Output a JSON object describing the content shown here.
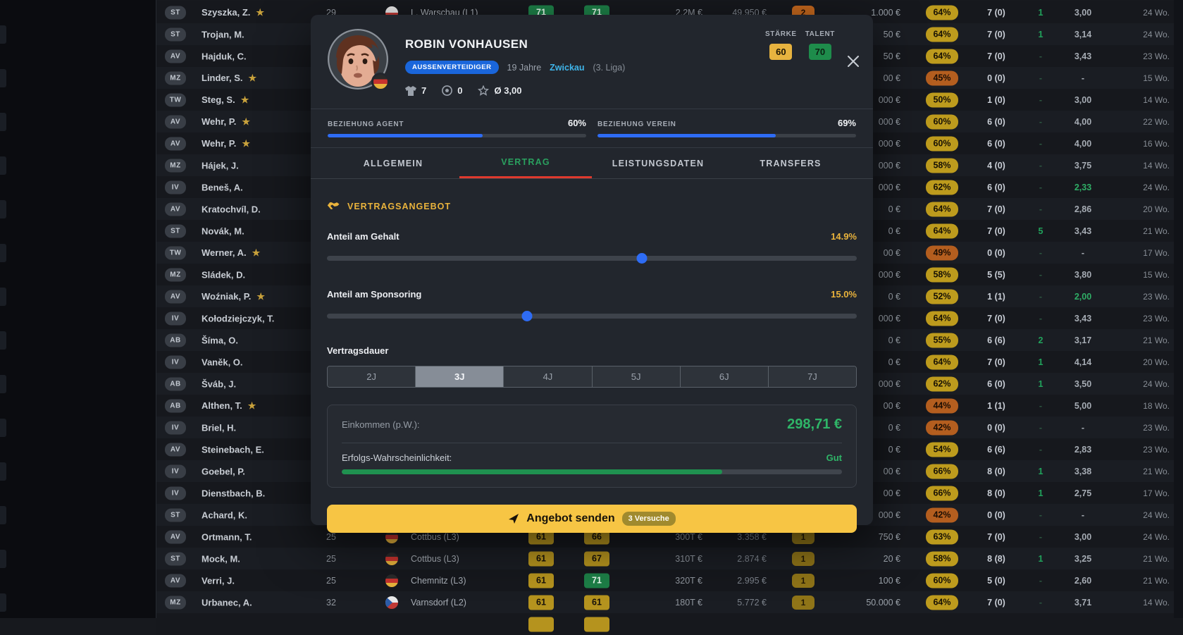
{
  "modal": {
    "player": {
      "name": "ROBIN VONHAUSEN",
      "position_badge": "AUSSENVERTEIDIGER",
      "age": "19 Jahre",
      "club": "Zwickau",
      "league": "(3. Liga)",
      "apps": "7",
      "goals": "0",
      "avg_rating": "Ø 3,00",
      "staerke_label": "STÄRKE",
      "staerke_value": "60",
      "talent_label": "TALENT",
      "talent_value": "70"
    },
    "relations": {
      "agent_label": "BEZIEHUNG AGENT",
      "agent_value": "60%",
      "agent_pct": 60,
      "verein_label": "BEZIEHUNG VEREIN",
      "verein_value": "69%",
      "verein_pct": 69
    },
    "tabs": [
      {
        "label": "ALLGEMEIN",
        "active": false
      },
      {
        "label": "VERTRAG",
        "active": true
      },
      {
        "label": "LEISTUNGSDATEN",
        "active": false
      },
      {
        "label": "TRANSFERS",
        "active": false
      }
    ],
    "contract": {
      "section_title": "VERTRAGSANGEBOT",
      "salary_label": "Anteil am Gehalt",
      "salary_value": "14.9%",
      "salary_thumb_pct": 59.4,
      "sponsor_label": "Anteil am Sponsoring",
      "sponsor_value": "15.0%",
      "sponsor_thumb_pct": 37.8,
      "duration_label": "Vertragsdauer",
      "durations": [
        "2J",
        "3J",
        "4J",
        "5J",
        "6J",
        "7J"
      ],
      "duration_selected": "3J",
      "income_label": "Einkommen (p.W.):",
      "income_value": "298,71 €",
      "probability_label": "Erfolgs-Wahrscheinlichkeit:",
      "probability_value": "Gut",
      "probability_pct": 76,
      "submit_label": "Angebot senden",
      "attempts_badge": "3 Versuche"
    },
    "colors": {
      "accent_gold": "#e9b33c",
      "accent_green": "#2fb568",
      "accent_blue": "#2e6cf5",
      "tab_underline": "#df3a2e",
      "button": "#f7c544"
    }
  },
  "table": {
    "rows": [
      {
        "pos": "ST",
        "name": "Szyszka, Z.",
        "star": true,
        "age": "29",
        "flag": "pl",
        "club": "L. Warschau (L1)",
        "r1": "71",
        "r1g": true,
        "r2": "71",
        "r2g": true,
        "market": "2.2M €",
        "salary": "49.950 €",
        "cb": "2",
        "cbo": true,
        "money": "1.000 €",
        "pct": "64%",
        "low": false,
        "games": "7 (0)",
        "extra": "1",
        "grade": "3,00",
        "gg": false,
        "weeks": "24 Wo."
      },
      {
        "pos": "ST",
        "name": "Trojan, M.",
        "star": false,
        "age": "",
        "flag": "",
        "club": "",
        "r1": "",
        "r1g": false,
        "r2": "",
        "r2g": false,
        "market": "",
        "salary": "",
        "cb": "",
        "cbo": false,
        "money": "50 €",
        "pct": "64%",
        "low": false,
        "games": "7 (0)",
        "extra": "1",
        "grade": "3,14",
        "gg": false,
        "weeks": "24 Wo."
      },
      {
        "pos": "AV",
        "name": "Hajduk, C.",
        "star": false,
        "age": "",
        "flag": "",
        "club": "",
        "r1": "",
        "r1g": false,
        "r2": "",
        "r2g": false,
        "market": "",
        "salary": "",
        "cb": "",
        "cbo": false,
        "money": "50 €",
        "pct": "64%",
        "low": false,
        "games": "7 (0)",
        "extra": "-",
        "grade": "3,43",
        "gg": false,
        "weeks": "23 Wo."
      },
      {
        "pos": "MZ",
        "name": "Linder, S.",
        "star": true,
        "age": "",
        "flag": "",
        "club": "",
        "r1": "",
        "r1g": false,
        "r2": "",
        "r2g": false,
        "market": "",
        "salary": "",
        "cb": "",
        "cbo": false,
        "money": "00 €",
        "pct": "45%",
        "low": true,
        "games": "0 (0)",
        "extra": "-",
        "grade": "-",
        "gg": false,
        "weeks": "15 Wo."
      },
      {
        "pos": "TW",
        "name": "Steg, S.",
        "star": true,
        "age": "",
        "flag": "",
        "club": "",
        "r1": "",
        "r1g": false,
        "r2": "",
        "r2g": false,
        "market": "",
        "salary": "",
        "cb": "",
        "cbo": false,
        "money": "000 €",
        "pct": "50%",
        "low": false,
        "games": "1 (0)",
        "extra": "-",
        "grade": "3,00",
        "gg": false,
        "weeks": "14 Wo."
      },
      {
        "pos": "AV",
        "name": "Wehr, P.",
        "star": true,
        "age": "",
        "flag": "",
        "club": "",
        "r1": "",
        "r1g": false,
        "r2": "",
        "r2g": false,
        "market": "",
        "salary": "",
        "cb": "",
        "cbo": false,
        "money": "000 €",
        "pct": "60%",
        "low": false,
        "games": "6 (0)",
        "extra": "-",
        "grade": "4,00",
        "gg": false,
        "weeks": "22 Wo."
      },
      {
        "pos": "AV",
        "name": "Wehr, P.",
        "star": true,
        "age": "",
        "flag": "",
        "club": "",
        "r1": "",
        "r1g": false,
        "r2": "",
        "r2g": false,
        "market": "",
        "salary": "",
        "cb": "",
        "cbo": false,
        "money": "000 €",
        "pct": "60%",
        "low": false,
        "games": "6 (0)",
        "extra": "-",
        "grade": "4,00",
        "gg": false,
        "weeks": "16 Wo."
      },
      {
        "pos": "MZ",
        "name": "Hájek, J.",
        "star": false,
        "age": "",
        "flag": "",
        "club": "",
        "r1": "",
        "r1g": false,
        "r2": "",
        "r2g": false,
        "market": "",
        "salary": "",
        "cb": "",
        "cbo": false,
        "money": "000 €",
        "pct": "58%",
        "low": false,
        "games": "4 (0)",
        "extra": "-",
        "grade": "3,75",
        "gg": false,
        "weeks": "14 Wo."
      },
      {
        "pos": "IV",
        "name": "Beneš, A.",
        "star": false,
        "age": "",
        "flag": "",
        "club": "",
        "r1": "",
        "r1g": false,
        "r2": "",
        "r2g": false,
        "market": "",
        "salary": "",
        "cb": "",
        "cbo": false,
        "money": "000 €",
        "pct": "62%",
        "low": false,
        "games": "6 (0)",
        "extra": "-",
        "grade": "2,33",
        "gg": true,
        "weeks": "24 Wo."
      },
      {
        "pos": "AV",
        "name": "Kratochvíl, D.",
        "star": false,
        "age": "",
        "flag": "",
        "club": "",
        "r1": "",
        "r1g": false,
        "r2": "",
        "r2g": false,
        "market": "",
        "salary": "",
        "cb": "",
        "cbo": false,
        "money": "0 €",
        "pct": "64%",
        "low": false,
        "games": "7 (0)",
        "extra": "-",
        "grade": "2,86",
        "gg": false,
        "weeks": "20 Wo."
      },
      {
        "pos": "ST",
        "name": "Novák, M.",
        "star": false,
        "age": "",
        "flag": "",
        "club": "",
        "r1": "",
        "r1g": false,
        "r2": "",
        "r2g": false,
        "market": "",
        "salary": "",
        "cb": "",
        "cbo": false,
        "money": "0 €",
        "pct": "64%",
        "low": false,
        "games": "7 (0)",
        "extra": "5",
        "grade": "3,43",
        "gg": false,
        "weeks": "21 Wo."
      },
      {
        "pos": "TW",
        "name": "Werner, A.",
        "star": true,
        "age": "",
        "flag": "",
        "club": "",
        "r1": "",
        "r1g": false,
        "r2": "",
        "r2g": false,
        "market": "",
        "salary": "",
        "cb": "",
        "cbo": false,
        "money": "00 €",
        "pct": "49%",
        "low": true,
        "games": "0 (0)",
        "extra": "-",
        "grade": "-",
        "gg": false,
        "weeks": "17 Wo."
      },
      {
        "pos": "MZ",
        "name": "Sládek, D.",
        "star": false,
        "age": "",
        "flag": "",
        "club": "",
        "r1": "",
        "r1g": false,
        "r2": "",
        "r2g": false,
        "market": "",
        "salary": "",
        "cb": "",
        "cbo": false,
        "money": "000 €",
        "pct": "58%",
        "low": false,
        "games": "5 (5)",
        "extra": "-",
        "grade": "3,80",
        "gg": false,
        "weeks": "15 Wo."
      },
      {
        "pos": "AV",
        "name": "Woźniak, P.",
        "star": true,
        "age": "",
        "flag": "",
        "club": "",
        "r1": "",
        "r1g": false,
        "r2": "",
        "r2g": false,
        "market": "",
        "salary": "",
        "cb": "",
        "cbo": false,
        "money": "0 €",
        "pct": "52%",
        "low": false,
        "games": "1 (1)",
        "extra": "-",
        "grade": "2,00",
        "gg": true,
        "weeks": "23 Wo."
      },
      {
        "pos": "IV",
        "name": "Kołodziejczyk, T.",
        "star": false,
        "age": "",
        "flag": "",
        "club": "",
        "r1": "",
        "r1g": false,
        "r2": "",
        "r2g": false,
        "market": "",
        "salary": "",
        "cb": "",
        "cbo": false,
        "money": "000 €",
        "pct": "64%",
        "low": false,
        "games": "7 (0)",
        "extra": "-",
        "grade": "3,43",
        "gg": false,
        "weeks": "23 Wo."
      },
      {
        "pos": "AB",
        "name": "Šíma, O.",
        "star": false,
        "age": "",
        "flag": "",
        "club": "",
        "r1": "",
        "r1g": false,
        "r2": "",
        "r2g": false,
        "market": "",
        "salary": "",
        "cb": "",
        "cbo": false,
        "money": "0 €",
        "pct": "55%",
        "low": false,
        "games": "6 (6)",
        "extra": "2",
        "grade": "3,17",
        "gg": false,
        "weeks": "21 Wo."
      },
      {
        "pos": "IV",
        "name": "Vaněk, O.",
        "star": false,
        "age": "",
        "flag": "",
        "club": "",
        "r1": "",
        "r1g": false,
        "r2": "",
        "r2g": false,
        "market": "",
        "salary": "",
        "cb": "",
        "cbo": false,
        "money": "0 €",
        "pct": "64%",
        "low": false,
        "games": "7 (0)",
        "extra": "1",
        "grade": "4,14",
        "gg": false,
        "weeks": "20 Wo."
      },
      {
        "pos": "AB",
        "name": "Šváb, J.",
        "star": false,
        "age": "",
        "flag": "",
        "club": "",
        "r1": "",
        "r1g": false,
        "r2": "",
        "r2g": false,
        "market": "",
        "salary": "",
        "cb": "",
        "cbo": false,
        "money": "000 €",
        "pct": "62%",
        "low": false,
        "games": "6 (0)",
        "extra": "1",
        "grade": "3,50",
        "gg": false,
        "weeks": "24 Wo."
      },
      {
        "pos": "AB",
        "name": "Althen, T.",
        "star": true,
        "age": "",
        "flag": "",
        "club": "",
        "r1": "",
        "r1g": false,
        "r2": "",
        "r2g": false,
        "market": "",
        "salary": "",
        "cb": "",
        "cbo": false,
        "money": "00 €",
        "pct": "44%",
        "low": true,
        "games": "1 (1)",
        "extra": "-",
        "grade": "5,00",
        "gg": false,
        "weeks": "18 Wo."
      },
      {
        "pos": "IV",
        "name": "Briel, H.",
        "star": false,
        "age": "",
        "flag": "",
        "club": "",
        "r1": "",
        "r1g": false,
        "r2": "",
        "r2g": false,
        "market": "",
        "salary": "",
        "cb": "",
        "cbo": false,
        "money": "0 €",
        "pct": "42%",
        "low": true,
        "games": "0 (0)",
        "extra": "-",
        "grade": "-",
        "gg": false,
        "weeks": "23 Wo."
      },
      {
        "pos": "AV",
        "name": "Steinebach, E.",
        "star": false,
        "age": "",
        "flag": "",
        "club": "",
        "r1": "",
        "r1g": false,
        "r2": "",
        "r2g": false,
        "market": "",
        "salary": "",
        "cb": "",
        "cbo": false,
        "money": "0 €",
        "pct": "54%",
        "low": false,
        "games": "6 (6)",
        "extra": "-",
        "grade": "2,83",
        "gg": false,
        "weeks": "23 Wo."
      },
      {
        "pos": "IV",
        "name": "Goebel, P.",
        "star": false,
        "age": "",
        "flag": "",
        "club": "",
        "r1": "",
        "r1g": false,
        "r2": "",
        "r2g": false,
        "market": "",
        "salary": "",
        "cb": "",
        "cbo": false,
        "money": "00 €",
        "pct": "66%",
        "low": false,
        "games": "8 (0)",
        "extra": "1",
        "grade": "3,38",
        "gg": false,
        "weeks": "21 Wo."
      },
      {
        "pos": "IV",
        "name": "Dienstbach, B.",
        "star": false,
        "age": "",
        "flag": "",
        "club": "",
        "r1": "",
        "r1g": false,
        "r2": "",
        "r2g": false,
        "market": "",
        "salary": "",
        "cb": "",
        "cbo": false,
        "money": "00 €",
        "pct": "66%",
        "low": false,
        "games": "8 (0)",
        "extra": "1",
        "grade": "2,75",
        "gg": false,
        "weeks": "17 Wo."
      },
      {
        "pos": "ST",
        "name": "Achard, K.",
        "star": false,
        "age": "",
        "flag": "",
        "club": "",
        "r1": "",
        "r1g": false,
        "r2": "",
        "r2g": false,
        "market": "",
        "salary": "",
        "cb": "",
        "cbo": false,
        "money": "000 €",
        "pct": "42%",
        "low": true,
        "games": "0 (0)",
        "extra": "-",
        "grade": "-",
        "gg": false,
        "weeks": "24 Wo."
      },
      {
        "pos": "AV",
        "name": "Ortmann, T.",
        "star": false,
        "age": "25",
        "flag": "de",
        "club": "Cottbus (L3)",
        "r1": "61",
        "r1g": false,
        "r2": "66",
        "r2g": false,
        "market": "300T €",
        "salary": "3.358 €",
        "cb": "1",
        "cbo": false,
        "money": "750 €",
        "pct": "63%",
        "low": false,
        "games": "7 (0)",
        "extra": "-",
        "grade": "3,00",
        "gg": false,
        "weeks": "24 Wo."
      },
      {
        "pos": "ST",
        "name": "Mock, M.",
        "star": false,
        "age": "25",
        "flag": "de",
        "club": "Cottbus (L3)",
        "r1": "61",
        "r1g": false,
        "r2": "67",
        "r2g": false,
        "market": "310T €",
        "salary": "2.874 €",
        "cb": "1",
        "cbo": false,
        "money": "20 €",
        "pct": "58%",
        "low": false,
        "games": "8 (8)",
        "extra": "1",
        "grade": "3,25",
        "gg": false,
        "weeks": "21 Wo."
      },
      {
        "pos": "AV",
        "name": "Verri, J.",
        "star": false,
        "age": "25",
        "flag": "de",
        "club": "Chemnitz (L3)",
        "r1": "61",
        "r1g": false,
        "r2": "71",
        "r2g": true,
        "market": "320T €",
        "salary": "2.995 €",
        "cb": "1",
        "cbo": false,
        "money": "100 €",
        "pct": "60%",
        "low": false,
        "games": "5 (0)",
        "extra": "-",
        "grade": "2,60",
        "gg": false,
        "weeks": "21 Wo."
      },
      {
        "pos": "MZ",
        "name": "Urbanec, A.",
        "star": false,
        "age": "32",
        "flag": "cz",
        "club": "Varnsdorf (L2)",
        "r1": "61",
        "r1g": false,
        "r2": "61",
        "r2g": false,
        "market": "180T €",
        "salary": "5.772 €",
        "cb": "1",
        "cbo": false,
        "money": "50.000 €",
        "pct": "64%",
        "low": false,
        "games": "7 (0)",
        "extra": "-",
        "grade": "3,71",
        "gg": false,
        "weeks": "14 Wo."
      },
      {
        "pos": "",
        "name": "",
        "star": false,
        "age": "",
        "flag": "",
        "club": "",
        "r1": " ",
        "r1g": false,
        "r2": " ",
        "r2g": false,
        "market": "",
        "salary": "",
        "cb": "",
        "cbo": false,
        "money": "",
        "pct": "",
        "low": false,
        "games": "",
        "extra": "",
        "grade": "",
        "gg": false,
        "weeks": ""
      }
    ]
  }
}
